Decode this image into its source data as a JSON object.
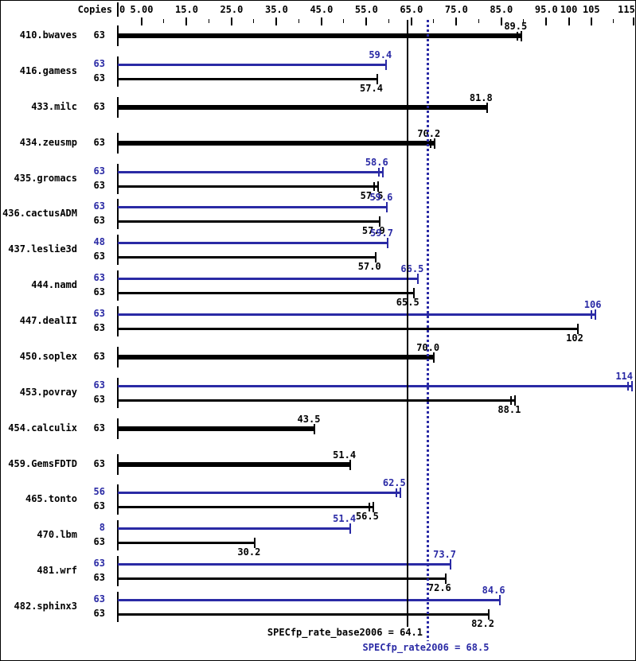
{
  "header": {
    "copies_label": "Copies"
  },
  "colors": {
    "base": "#000000",
    "peak": "#2A2AA5",
    "background": "#FFFFFF",
    "frame": "#000000"
  },
  "axis": {
    "zero_label": "0",
    "min": 0,
    "max": 115,
    "major_ticks": [
      {
        "value": 5,
        "label": "5.00"
      },
      {
        "value": 15,
        "label": "15.0"
      },
      {
        "value": 25,
        "label": "25.0"
      },
      {
        "value": 35,
        "label": "35.0"
      },
      {
        "value": 45,
        "label": "45.0"
      },
      {
        "value": 55,
        "label": "55.0"
      },
      {
        "value": 65,
        "label": "65.0"
      },
      {
        "value": 75,
        "label": "75.0"
      },
      {
        "value": 85,
        "label": "85.0"
      },
      {
        "value": 95,
        "label": "95.0"
      },
      {
        "value": 100,
        "label": "100"
      },
      {
        "value": 105,
        "label": "105"
      },
      {
        "value": 115,
        "label": "115"
      }
    ],
    "minor_tick_values": [
      10,
      20,
      30,
      40,
      50,
      60,
      70,
      80,
      90,
      110
    ]
  },
  "benchmarks": [
    {
      "name": "410.bwaves",
      "bars": [
        {
          "kind": "base",
          "copies": "63",
          "value": 89.5,
          "label": "89.5",
          "bold": true,
          "cap": "double"
        }
      ]
    },
    {
      "name": "416.gamess",
      "bars": [
        {
          "kind": "peak",
          "copies": "63",
          "value": 59.4,
          "label": "59.4",
          "bold": false,
          "cap": "single"
        },
        {
          "kind": "base",
          "copies": "63",
          "value": 57.4,
          "label": "57.4",
          "bold": false,
          "cap": "single"
        }
      ]
    },
    {
      "name": "433.milc",
      "bars": [
        {
          "kind": "base",
          "copies": "63",
          "value": 81.8,
          "label": "81.8",
          "bold": true,
          "cap": "single"
        }
      ]
    },
    {
      "name": "434.zeusmp",
      "bars": [
        {
          "kind": "base",
          "copies": "63",
          "value": 70.2,
          "label": "70.2",
          "bold": true,
          "cap": "double"
        }
      ]
    },
    {
      "name": "435.gromacs",
      "bars": [
        {
          "kind": "peak",
          "copies": "63",
          "value": 58.6,
          "label": "58.6",
          "bold": false,
          "cap": "double"
        },
        {
          "kind": "base",
          "copies": "63",
          "value": 57.5,
          "label": "57.5",
          "bold": false,
          "cap": "double"
        }
      ]
    },
    {
      "name": "436.cactusADM",
      "bars": [
        {
          "kind": "peak",
          "copies": "63",
          "value": 59.6,
          "label": "59.6",
          "bold": false,
          "cap": "single"
        },
        {
          "kind": "base",
          "copies": "63",
          "value": 57.9,
          "label": "57.9",
          "bold": false,
          "cap": "single"
        }
      ]
    },
    {
      "name": "437.leslie3d",
      "bars": [
        {
          "kind": "peak",
          "copies": "48",
          "value": 59.7,
          "label": "59.7",
          "bold": false,
          "cap": "single"
        },
        {
          "kind": "base",
          "copies": "63",
          "value": 57.0,
          "label": "57.0",
          "bold": false,
          "cap": "single"
        }
      ]
    },
    {
      "name": "444.namd",
      "bars": [
        {
          "kind": "peak",
          "copies": "63",
          "value": 66.5,
          "label": "66.5",
          "bold": false,
          "cap": "single"
        },
        {
          "kind": "base",
          "copies": "63",
          "value": 65.5,
          "label": "65.5",
          "bold": false,
          "cap": "single"
        }
      ]
    },
    {
      "name": "447.dealII",
      "bars": [
        {
          "kind": "peak",
          "copies": "63",
          "value": 106,
          "label": "106",
          "bold": false,
          "cap": "double"
        },
        {
          "kind": "base",
          "copies": "63",
          "value": 102,
          "label": "102",
          "bold": false,
          "cap": "single"
        }
      ]
    },
    {
      "name": "450.soplex",
      "bars": [
        {
          "kind": "base",
          "copies": "63",
          "value": 70.0,
          "label": "70.0",
          "bold": true,
          "cap": "single"
        }
      ]
    },
    {
      "name": "453.povray",
      "bars": [
        {
          "kind": "peak",
          "copies": "63",
          "value": 114,
          "label": "114",
          "bold": false,
          "cap": "double"
        },
        {
          "kind": "base",
          "copies": "63",
          "value": 88.1,
          "label": "88.1",
          "bold": false,
          "cap": "double"
        }
      ]
    },
    {
      "name": "454.calculix",
      "bars": [
        {
          "kind": "base",
          "copies": "63",
          "value": 43.5,
          "label": "43.5",
          "bold": true,
          "cap": "single"
        }
      ]
    },
    {
      "name": "459.GemsFDTD",
      "bars": [
        {
          "kind": "base",
          "copies": "63",
          "value": 51.4,
          "label": "51.4",
          "bold": true,
          "cap": "single"
        }
      ]
    },
    {
      "name": "465.tonto",
      "bars": [
        {
          "kind": "peak",
          "copies": "56",
          "value": 62.5,
          "label": "62.5",
          "bold": false,
          "cap": "double"
        },
        {
          "kind": "base",
          "copies": "63",
          "value": 56.5,
          "label": "56.5",
          "bold": false,
          "cap": "double"
        }
      ]
    },
    {
      "name": "470.lbm",
      "bars": [
        {
          "kind": "peak",
          "copies": "8",
          "value": 51.4,
          "label": "51.4",
          "bold": false,
          "cap": "single"
        },
        {
          "kind": "base",
          "copies": "63",
          "value": 30.2,
          "label": "30.2",
          "bold": false,
          "cap": "single"
        }
      ]
    },
    {
      "name": "481.wrf",
      "bars": [
        {
          "kind": "peak",
          "copies": "63",
          "value": 73.7,
          "label": "73.7",
          "bold": false,
          "cap": "single"
        },
        {
          "kind": "base",
          "copies": "63",
          "value": 72.6,
          "label": "72.6",
          "bold": false,
          "cap": "single"
        }
      ]
    },
    {
      "name": "482.sphinx3",
      "bars": [
        {
          "kind": "peak",
          "copies": "63",
          "value": 84.6,
          "label": "84.6",
          "bold": false,
          "cap": "single"
        },
        {
          "kind": "base",
          "copies": "63",
          "value": 82.2,
          "label": "82.2",
          "bold": false,
          "cap": "single"
        }
      ]
    }
  ],
  "reference_lines": {
    "base": {
      "label": "SPECfp_rate_base2006 = 64.1",
      "value": 64.1,
      "style": "solid",
      "color": "#000000"
    },
    "peak": {
      "label": "SPECfp_rate2006 = 68.5",
      "value": 68.5,
      "style": "dotted",
      "color": "#2A2AA5"
    }
  },
  "chart_data": {
    "type": "bar",
    "orientation": "horizontal",
    "categories": [
      "410.bwaves",
      "416.gamess",
      "433.milc",
      "434.zeusmp",
      "435.gromacs",
      "436.cactusADM",
      "437.leslie3d",
      "444.namd",
      "447.dealII",
      "450.soplex",
      "453.povray",
      "454.calculix",
      "459.GemsFDTD",
      "465.tonto",
      "470.lbm",
      "481.wrf",
      "482.sphinx3"
    ],
    "series": [
      {
        "name": "base",
        "color": "#000000",
        "values": [
          89.5,
          57.4,
          81.8,
          70.2,
          57.5,
          57.9,
          57.0,
          65.5,
          102,
          70.0,
          88.1,
          43.5,
          51.4,
          56.5,
          30.2,
          72.6,
          82.2
        ],
        "copies": [
          63,
          63,
          63,
          63,
          63,
          63,
          63,
          63,
          63,
          63,
          63,
          63,
          63,
          63,
          63,
          63,
          63
        ]
      },
      {
        "name": "peak",
        "color": "#2A2AA5",
        "values": [
          null,
          59.4,
          null,
          null,
          58.6,
          59.6,
          59.7,
          66.5,
          106,
          null,
          114,
          null,
          null,
          62.5,
          51.4,
          73.7,
          84.6
        ],
        "copies": [
          null,
          63,
          null,
          null,
          63,
          63,
          48,
          63,
          63,
          null,
          63,
          null,
          null,
          56,
          8,
          63,
          63
        ]
      }
    ],
    "xlim": [
      0,
      115
    ],
    "x_tick_labels": [
      "0",
      "5.00",
      "15.0",
      "25.0",
      "35.0",
      "45.0",
      "55.0",
      "65.0",
      "75.0",
      "85.0",
      "95.0",
      "100",
      "105",
      "115"
    ],
    "copies_column_header": "Copies",
    "reference_lines": [
      {
        "label": "SPECfp_rate_base2006",
        "value": 64.1
      },
      {
        "label": "SPECfp_rate2006",
        "value": 68.5
      }
    ],
    "grid": false,
    "legend_position": "none"
  }
}
